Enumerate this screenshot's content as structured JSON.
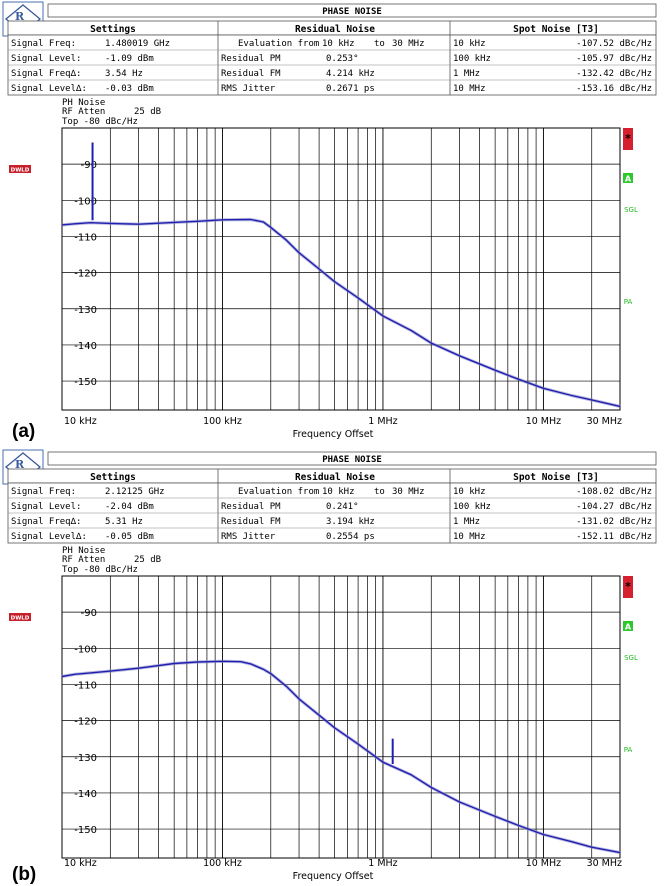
{
  "panels": [
    {
      "label": "(a)",
      "header": {
        "title": "PHASE NOISE",
        "col_settings": "Settings",
        "col_residual": "Residual Noise",
        "col_spot": "Spot Noise [T3]",
        "settings": [
          {
            "name": "Signal Freq:",
            "value": "1.480019 GHz"
          },
          {
            "name": "Signal Level:",
            "value": "-1.09 dBm"
          },
          {
            "name": "Signal Freq∆:",
            "value": "3.54   Hz"
          },
          {
            "name": "Signal Level∆:",
            "value": "-0.03 dBm"
          }
        ],
        "evaluation": {
          "label": "Evaluation from",
          "from": "10 kHz",
          "to_word": "to",
          "to": "30 MHz"
        },
        "residual": [
          {
            "name": "Residual PM",
            "value": "0.253°"
          },
          {
            "name": "Residual FM",
            "value": "4.214 kHz"
          },
          {
            "name": "RMS Jitter",
            "value": "0.2671 ps"
          }
        ],
        "spot": [
          {
            "offset": "10 kHz",
            "value": "-107.52 dBc/Hz"
          },
          {
            "offset": "100 kHz",
            "value": "-105.97 dBc/Hz"
          },
          {
            "offset": "1 MHz",
            "value": "-132.42 dBc/Hz"
          },
          {
            "offset": "10 MHz",
            "value": "-153.16 dBc/Hz"
          }
        ]
      },
      "info": {
        "line1": "PH Noise",
        "rf_atten_label": "RF Atten",
        "rf_atten_value": "25 dB",
        "top": "Top -80 dBc/Hz"
      },
      "side_left": "DWLD",
      "side_right": [
        "*",
        "A",
        "SGL",
        "PA"
      ]
    },
    {
      "label": "(b)",
      "header": {
        "title": "PHASE NOISE",
        "col_settings": "Settings",
        "col_residual": "Residual Noise",
        "col_spot": "Spot Noise [T3]",
        "settings": [
          {
            "name": "Signal Freq:",
            "value": "2.12125 GHz"
          },
          {
            "name": "Signal Level:",
            "value": "-2.04 dBm"
          },
          {
            "name": "Signal Freq∆:",
            "value": "5.31   Hz"
          },
          {
            "name": "Signal Level∆:",
            "value": "-0.05 dBm"
          }
        ],
        "evaluation": {
          "label": "Evaluation from",
          "from": "10 kHz",
          "to_word": "to",
          "to": "30 MHz"
        },
        "residual": [
          {
            "name": "Residual PM",
            "value": "0.241°"
          },
          {
            "name": "Residual FM",
            "value": "3.194 kHz"
          },
          {
            "name": "RMS Jitter",
            "value": "0.2554 ps"
          }
        ],
        "spot": [
          {
            "offset": "10 kHz",
            "value": "-108.02 dBc/Hz"
          },
          {
            "offset": "100 kHz",
            "value": "-104.27 dBc/Hz"
          },
          {
            "offset": "1 MHz",
            "value": "-131.02 dBc/Hz"
          },
          {
            "offset": "10 MHz",
            "value": "-152.11 dBc/Hz"
          }
        ]
      },
      "info": {
        "line1": "PH Noise",
        "rf_atten_label": "RF Atten",
        "rf_atten_value": "25 dB",
        "top": "Top -80 dBc/Hz"
      },
      "side_left": "DWLD",
      "side_right": [
        "*",
        "A",
        "SGL",
        "PA"
      ]
    }
  ],
  "chart_data": [
    {
      "type": "line",
      "xscale": "log",
      "xlim": [
        10000,
        30000000
      ],
      "ylim": [
        -158,
        -80
      ],
      "xlabel": "Frequency Offset",
      "ylabel": "",
      "xticks": [
        10000,
        100000,
        1000000,
        10000000,
        30000000
      ],
      "xtick_labels": [
        "10 kHz",
        "100 kHz",
        "1 MHz",
        "10 MHz",
        "30 MHz"
      ],
      "yticks": [
        -90,
        -100,
        -110,
        -120,
        -130,
        -140,
        -150
      ],
      "ytick_labels": [
        "-90",
        "-100",
        "-110",
        "-120",
        "-130",
        "-140",
        "-150"
      ],
      "grid": true,
      "line_color": "#2020b0",
      "spur": {
        "x": 15500,
        "y_top": -84,
        "y_bottom": -105.5
      },
      "series": [
        {
          "x": [
            10000,
            12000,
            15000,
            20000,
            30000,
            50000,
            70000,
            100000,
            150000,
            180000,
            200000,
            250000,
            300000,
            400000,
            500000,
            700000,
            1000000,
            1500000,
            2000000,
            3000000,
            5000000,
            7000000,
            10000000,
            15000000,
            20000000,
            30000000
          ],
          "y": [
            -106.8,
            -106.5,
            -106.2,
            -106.4,
            -106.6,
            -106.1,
            -105.8,
            -105.4,
            -105.3,
            -106.0,
            -107.5,
            -111.0,
            -114.5,
            -119.0,
            -122.5,
            -127.0,
            -132.0,
            -136.0,
            -139.5,
            -143.0,
            -147.0,
            -149.5,
            -152.0,
            -154.0,
            -155.2,
            -157.0
          ]
        }
      ]
    },
    {
      "type": "line",
      "xscale": "log",
      "xlim": [
        10000,
        30000000
      ],
      "ylim": [
        -158,
        -80
      ],
      "xlabel": "Frequency Offset",
      "ylabel": "",
      "xticks": [
        10000,
        100000,
        1000000,
        10000000,
        30000000
      ],
      "xtick_labels": [
        "10 kHz",
        "100 kHz",
        "1 MHz",
        "10 MHz",
        "30 MHz"
      ],
      "yticks": [
        -90,
        -100,
        -110,
        -120,
        -130,
        -140,
        -150
      ],
      "ytick_labels": [
        "-90",
        "-100",
        "-110",
        "-120",
        "-130",
        "-140",
        "-150"
      ],
      "grid": true,
      "line_color": "#2020b0",
      "spur": {
        "x": 1150000,
        "y_top": -125,
        "y_bottom": -132
      },
      "series": [
        {
          "x": [
            10000,
            12000,
            15000,
            20000,
            30000,
            50000,
            70000,
            100000,
            130000,
            150000,
            180000,
            200000,
            250000,
            300000,
            400000,
            500000,
            700000,
            1000000,
            1500000,
            2000000,
            3000000,
            5000000,
            7000000,
            10000000,
            15000000,
            20000000,
            30000000
          ],
          "y": [
            -107.8,
            -107.2,
            -106.8,
            -106.3,
            -105.5,
            -104.2,
            -103.8,
            -103.6,
            -103.7,
            -104.3,
            -105.8,
            -107.0,
            -110.5,
            -114.0,
            -118.5,
            -122.0,
            -126.5,
            -131.5,
            -135.0,
            -138.5,
            -142.5,
            -146.5,
            -149.0,
            -151.5,
            -153.5,
            -155.0,
            -156.5
          ]
        }
      ]
    }
  ]
}
